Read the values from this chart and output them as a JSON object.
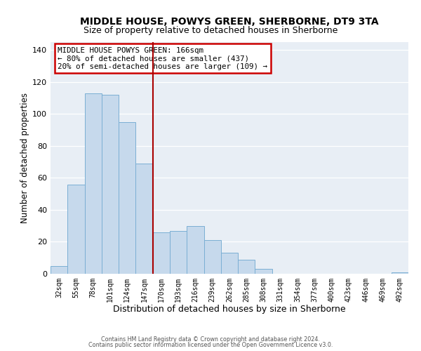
{
  "title": "MIDDLE HOUSE, POWYS GREEN, SHERBORNE, DT9 3TA",
  "subtitle": "Size of property relative to detached houses in Sherborne",
  "xlabel": "Distribution of detached houses by size in Sherborne",
  "ylabel": "Number of detached properties",
  "bar_labels": [
    "32sqm",
    "55sqm",
    "78sqm",
    "101sqm",
    "124sqm",
    "147sqm",
    "170sqm",
    "193sqm",
    "216sqm",
    "239sqm",
    "262sqm",
    "285sqm",
    "308sqm",
    "331sqm",
    "354sqm",
    "377sqm",
    "400sqm",
    "423sqm",
    "446sqm",
    "469sqm",
    "492sqm"
  ],
  "bar_values": [
    5,
    56,
    113,
    112,
    95,
    69,
    26,
    27,
    30,
    21,
    13,
    9,
    3,
    0,
    0,
    0,
    0,
    0,
    0,
    0,
    1
  ],
  "bar_color": "#c6d9ec",
  "bar_edge_color": "#7bafd4",
  "vline_x": 6,
  "vline_color": "#aa0000",
  "ylim": [
    0,
    145
  ],
  "yticks": [
    0,
    20,
    40,
    60,
    80,
    100,
    120,
    140
  ],
  "annotation_title": "MIDDLE HOUSE POWYS GREEN: 166sqm",
  "annotation_line1": "← 80% of detached houses are smaller (437)",
  "annotation_line2": "20% of semi-detached houses are larger (109) →",
  "footer_line1": "Contains HM Land Registry data © Crown copyright and database right 2024.",
  "footer_line2": "Contains public sector information licensed under the Open Government Licence v3.0.",
  "bg_color": "#e8eef5",
  "title_fontsize": 10,
  "subtitle_fontsize": 9
}
